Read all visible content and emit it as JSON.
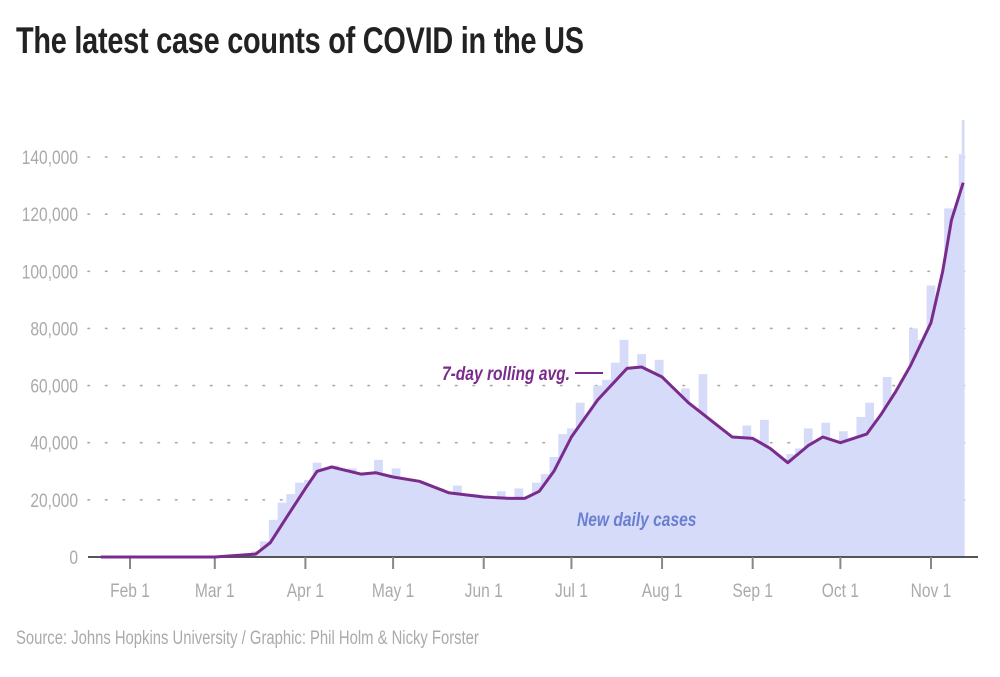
{
  "title": "The latest case counts of COVID in the US",
  "source": "Source: Johns Hopkins University / Graphic: Phil Holm & Nicky Forster",
  "colors": {
    "bars": "#d5dbf8",
    "line": "#7a2c8c",
    "bar_label": "#6b7fd0",
    "axis_text": "#aaaaaa",
    "grid": "#aaaaaa",
    "axis": "#555555"
  },
  "chart_data": {
    "type": "bar+line",
    "year": 2020,
    "ylim": [
      0,
      150000
    ],
    "yticks": [
      0,
      20000,
      40000,
      60000,
      80000,
      100000,
      120000,
      140000
    ],
    "ytick_labels": [
      "0",
      "20,000",
      "40,000",
      "60,000",
      "80,000",
      "100,000",
      "120,000",
      "140,000"
    ],
    "xticks": [
      "2020-02-01",
      "2020-03-01",
      "2020-04-01",
      "2020-05-01",
      "2020-06-01",
      "2020-07-01",
      "2020-08-01",
      "2020-09-01",
      "2020-10-01",
      "2020-11-01"
    ],
    "xtick_labels": [
      "Feb 1",
      "Mar 1",
      "Apr 1",
      "May 1",
      "Jun 1",
      "Jul 1",
      "Aug 1",
      "Sep 1",
      "Oct 1",
      "Nov 1"
    ],
    "grid": "horizontal dotted",
    "series": [
      {
        "name": "New daily cases",
        "type": "bar",
        "points": [
          [
            "2020-03-14",
            2000
          ],
          [
            "2020-03-17",
            5500
          ],
          [
            "2020-03-20",
            13000
          ],
          [
            "2020-03-23",
            19000
          ],
          [
            "2020-03-26",
            22000
          ],
          [
            "2020-03-29",
            26000
          ],
          [
            "2020-04-01",
            27000
          ],
          [
            "2020-04-04",
            33000
          ],
          [
            "2020-04-07",
            30000
          ],
          [
            "2020-04-10",
            32000
          ],
          [
            "2020-04-13",
            27000
          ],
          [
            "2020-04-16",
            31000
          ],
          [
            "2020-04-19",
            29000
          ],
          [
            "2020-04-22",
            28000
          ],
          [
            "2020-04-25",
            34000
          ],
          [
            "2020-04-28",
            25000
          ],
          [
            "2020-05-01",
            31000
          ],
          [
            "2020-05-04",
            23000
          ],
          [
            "2020-05-07",
            27000
          ],
          [
            "2020-05-10",
            25000
          ],
          [
            "2020-05-13",
            21000
          ],
          [
            "2020-05-16",
            24000
          ],
          [
            "2020-05-19",
            22000
          ],
          [
            "2020-05-22",
            25000
          ],
          [
            "2020-05-25",
            19000
          ],
          [
            "2020-05-28",
            22000
          ],
          [
            "2020-05-31",
            20000
          ],
          [
            "2020-06-03",
            21000
          ],
          [
            "2020-06-06",
            23000
          ],
          [
            "2020-06-09",
            18000
          ],
          [
            "2020-06-12",
            24000
          ],
          [
            "2020-06-15",
            20000
          ],
          [
            "2020-06-18",
            26000
          ],
          [
            "2020-06-21",
            29000
          ],
          [
            "2020-06-24",
            35000
          ],
          [
            "2020-06-27",
            43000
          ],
          [
            "2020-06-30",
            45000
          ],
          [
            "2020-07-03",
            54000
          ],
          [
            "2020-07-06",
            48000
          ],
          [
            "2020-07-09",
            60000
          ],
          [
            "2020-07-12",
            62000
          ],
          [
            "2020-07-15",
            68000
          ],
          [
            "2020-07-18",
            76000
          ],
          [
            "2020-07-21",
            63000
          ],
          [
            "2020-07-24",
            71000
          ],
          [
            "2020-07-27",
            58000
          ],
          [
            "2020-07-30",
            69000
          ],
          [
            "2020-08-02",
            52000
          ],
          [
            "2020-08-05",
            55000
          ],
          [
            "2020-08-08",
            59000
          ],
          [
            "2020-08-11",
            50000
          ],
          [
            "2020-08-14",
            64000
          ],
          [
            "2020-08-17",
            45000
          ],
          [
            "2020-08-20",
            44000
          ],
          [
            "2020-08-23",
            42000
          ],
          [
            "2020-08-26",
            40000
          ],
          [
            "2020-08-29",
            46000
          ],
          [
            "2020-09-01",
            38000
          ],
          [
            "2020-09-04",
            48000
          ],
          [
            "2020-09-07",
            30000
          ],
          [
            "2020-09-10",
            24000
          ],
          [
            "2020-09-13",
            36000
          ],
          [
            "2020-09-16",
            38000
          ],
          [
            "2020-09-19",
            45000
          ],
          [
            "2020-09-22",
            39000
          ],
          [
            "2020-09-25",
            47000
          ],
          [
            "2020-09-28",
            35000
          ],
          [
            "2020-10-01",
            44000
          ],
          [
            "2020-10-04",
            38000
          ],
          [
            "2020-10-07",
            49000
          ],
          [
            "2020-10-10",
            54000
          ],
          [
            "2020-10-13",
            48000
          ],
          [
            "2020-10-16",
            63000
          ],
          [
            "2020-10-19",
            57000
          ],
          [
            "2020-10-22",
            62000
          ],
          [
            "2020-10-25",
            80000
          ],
          [
            "2020-10-28",
            76000
          ],
          [
            "2020-10-31",
            95000
          ],
          [
            "2020-11-03",
            88000
          ],
          [
            "2020-11-06",
            122000
          ],
          [
            "2020-11-09",
            118000
          ],
          [
            "2020-11-11",
            141000
          ],
          [
            "2020-11-12",
            153000
          ]
        ]
      },
      {
        "name": "7-day rolling avg.",
        "type": "line",
        "points": [
          [
            "2020-01-22",
            0
          ],
          [
            "2020-03-01",
            0
          ],
          [
            "2020-03-15",
            1000
          ],
          [
            "2020-03-20",
            5000
          ],
          [
            "2020-03-25",
            13000
          ],
          [
            "2020-04-01",
            24000
          ],
          [
            "2020-04-05",
            30000
          ],
          [
            "2020-04-10",
            31500
          ],
          [
            "2020-04-20",
            29000
          ],
          [
            "2020-04-25",
            29500
          ],
          [
            "2020-05-01",
            28000
          ],
          [
            "2020-05-10",
            26500
          ],
          [
            "2020-05-20",
            22500
          ],
          [
            "2020-06-01",
            21000
          ],
          [
            "2020-06-10",
            20500
          ],
          [
            "2020-06-15",
            20500
          ],
          [
            "2020-06-20",
            23000
          ],
          [
            "2020-06-25",
            30000
          ],
          [
            "2020-07-01",
            42000
          ],
          [
            "2020-07-10",
            55000
          ],
          [
            "2020-07-20",
            66000
          ],
          [
            "2020-07-25",
            66500
          ],
          [
            "2020-08-01",
            63000
          ],
          [
            "2020-08-10",
            54000
          ],
          [
            "2020-08-20",
            46000
          ],
          [
            "2020-08-25",
            42000
          ],
          [
            "2020-09-01",
            41500
          ],
          [
            "2020-09-07",
            38000
          ],
          [
            "2020-09-13",
            33000
          ],
          [
            "2020-09-20",
            39000
          ],
          [
            "2020-09-25",
            42000
          ],
          [
            "2020-10-01",
            40000
          ],
          [
            "2020-10-10",
            43000
          ],
          [
            "2020-10-15",
            50000
          ],
          [
            "2020-10-20",
            58000
          ],
          [
            "2020-10-25",
            67000
          ],
          [
            "2020-11-01",
            82000
          ],
          [
            "2020-11-05",
            100000
          ],
          [
            "2020-11-08",
            118000
          ],
          [
            "2020-11-12",
            131000
          ]
        ]
      }
    ],
    "annotations": {
      "line_label": "7-day rolling avg.",
      "bar_label": "New daily cases"
    }
  }
}
